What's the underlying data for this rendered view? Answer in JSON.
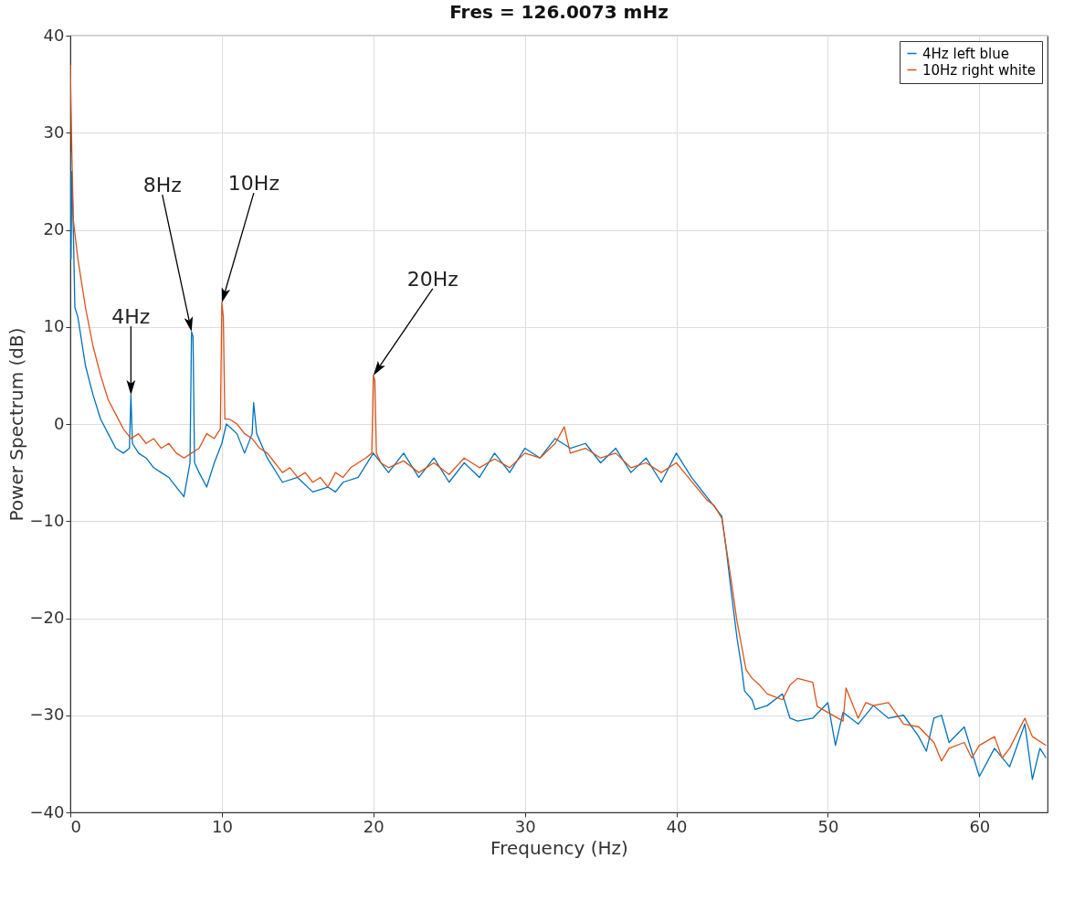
{
  "chart_data": {
    "type": "line",
    "title": "Fres = 126.0073 mHz",
    "xlabel": "Frequency (Hz)",
    "ylabel": "Power Spectrum (dB)",
    "xlim": [
      0,
      64.5
    ],
    "ylim": [
      -40,
      40
    ],
    "xticks": [
      0,
      10,
      20,
      30,
      40,
      50,
      60
    ],
    "yticks": [
      -40,
      -30,
      -20,
      -10,
      0,
      10,
      20,
      30,
      40
    ],
    "grid": true,
    "legend": "top right",
    "series": [
      {
        "name": "4Hz left blue",
        "color": "#0072bd",
        "x": [
          0,
          0.05,
          0.1,
          0.2,
          0.3,
          0.5,
          1,
          1.5,
          2,
          2.5,
          3,
          3.5,
          3.9,
          4,
          4.1,
          4.5,
          5,
          5.5,
          6,
          6.5,
          7,
          7.5,
          7.9,
          8,
          8.1,
          8.2,
          8.5,
          9,
          9.5,
          10,
          10.3,
          11,
          11.5,
          12,
          12.1,
          12.3,
          13,
          14,
          15,
          16,
          17,
          17.5,
          18,
          19,
          20,
          21,
          22,
          23,
          24,
          25,
          26,
          27,
          28,
          29,
          30,
          31,
          32,
          33,
          34,
          35,
          36,
          37,
          38,
          39,
          40,
          41,
          42,
          43,
          43.3,
          43.6,
          44,
          44.3,
          44.5,
          45,
          45.2,
          46,
          47,
          47.5,
          48,
          49,
          50,
          50.5,
          51,
          52,
          53,
          54,
          55,
          56,
          56.5,
          57,
          57.5,
          58,
          59,
          60,
          61,
          62,
          63,
          63.5,
          64,
          64.4
        ],
        "values": [
          28,
          17,
          26,
          20,
          12,
          11,
          6,
          3,
          0.5,
          -1,
          -2.5,
          -3,
          -2.5,
          3,
          -2,
          -3,
          -3.5,
          -4.5,
          -5,
          -5.5,
          -6.5,
          -7.5,
          -4,
          9.5,
          9,
          -4,
          -5,
          -6.5,
          -4,
          -2,
          0,
          -1,
          -3,
          -1,
          2.2,
          -1,
          -3.5,
          -6,
          -5.5,
          -7,
          -6.5,
          -7,
          -6,
          -5.5,
          -3,
          -5,
          -3,
          -5.5,
          -3.5,
          -6,
          -4,
          -5.5,
          -3,
          -5,
          -2.5,
          -3.5,
          -1.5,
          -2.5,
          -2,
          -4,
          -2.5,
          -5,
          -3.5,
          -6,
          -3,
          -5.5,
          -7.5,
          -9.5,
          -13,
          -17,
          -22,
          -25,
          -27.5,
          -28.4,
          -29.4,
          -29,
          -27.8,
          -30.3,
          -30.6,
          -30.3,
          -28.7,
          -33.1,
          -29.7,
          -30.9,
          -29,
          -30.3,
          -30,
          -32.2,
          -33.7,
          -30.3,
          -30,
          -32.8,
          -31.2,
          -36.3,
          -33.4,
          -35.3,
          -30.9,
          -36.6,
          -33.4,
          -34.4
        ]
      },
      {
        "name": "10Hz right white",
        "color": "#d95319",
        "x": [
          0,
          0.1,
          0.2,
          0.5,
          1,
          1.5,
          2,
          2.5,
          3,
          3.5,
          4,
          4.5,
          5,
          5.5,
          6,
          6.5,
          7,
          7.5,
          8,
          8.5,
          9,
          9.5,
          9.9,
          10,
          10.1,
          10.2,
          10.5,
          11,
          11.5,
          12,
          12.5,
          13,
          13.5,
          14,
          14.5,
          15,
          15.5,
          16,
          16.5,
          17,
          17.5,
          18,
          18.5,
          19,
          19.5,
          19.9,
          20,
          20.1,
          20.2,
          20.5,
          21,
          22,
          23,
          24,
          25,
          26,
          27,
          28,
          29,
          30,
          31,
          32,
          32.6,
          33,
          34,
          35,
          36,
          37,
          38,
          39,
          40,
          41,
          42,
          42.5,
          43,
          43.3,
          43.6,
          44,
          44.3,
          44.6,
          45,
          45.5,
          46,
          47,
          47.5,
          48,
          49,
          49.3,
          50,
          51,
          51.2,
          52,
          52.5,
          53,
          54,
          55,
          56,
          57,
          57.5,
          58,
          59,
          59.5,
          60,
          61,
          61.5,
          62,
          63,
          63.5,
          64.4
        ],
        "values": [
          37,
          28,
          21,
          17,
          12,
          8,
          5,
          2.5,
          1,
          -0.5,
          -1.5,
          -1,
          -2,
          -1.5,
          -2.5,
          -2,
          -3,
          -3.5,
          -3,
          -2.5,
          -1,
          -1.5,
          -0.5,
          12.5,
          11,
          0.5,
          0.5,
          0,
          -1,
          -1.5,
          -2.5,
          -3,
          -4,
          -5,
          -4.5,
          -5.5,
          -5,
          -6,
          -5.5,
          -6.5,
          -5,
          -5.5,
          -4.5,
          -4,
          -3.5,
          -3,
          5,
          4.5,
          -3,
          -4,
          -4.5,
          -3.8,
          -5,
          -4,
          -5.2,
          -3.5,
          -4.5,
          -3.6,
          -4.5,
          -3,
          -3.5,
          -2,
          -0.3,
          -3,
          -2.5,
          -3.5,
          -3,
          -4.5,
          -4,
          -5,
          -4,
          -5.9,
          -7.8,
          -8.4,
          -9.7,
          -12.8,
          -15.9,
          -20.3,
          -22.8,
          -25.3,
          -26.2,
          -26.9,
          -27.8,
          -28.4,
          -26.9,
          -26.2,
          -26.6,
          -29.1,
          -29.7,
          -30.6,
          -27.2,
          -30.3,
          -28.7,
          -29,
          -28.7,
          -30.9,
          -31.2,
          -32.8,
          -34.7,
          -33.4,
          -32.8,
          -34.4,
          -33.1,
          -32.2,
          -34.4,
          -33.4,
          -30.3,
          -32.2,
          -33.1
        ]
      }
    ],
    "annotations": [
      {
        "text": "4Hz",
        "x": 4,
        "y": 3
      },
      {
        "text": "8Hz",
        "x": 8,
        "y": 9.5
      },
      {
        "text": "10Hz",
        "x": 10,
        "y": 12.5
      },
      {
        "text": "20Hz",
        "x": 20,
        "y": 5
      }
    ]
  }
}
